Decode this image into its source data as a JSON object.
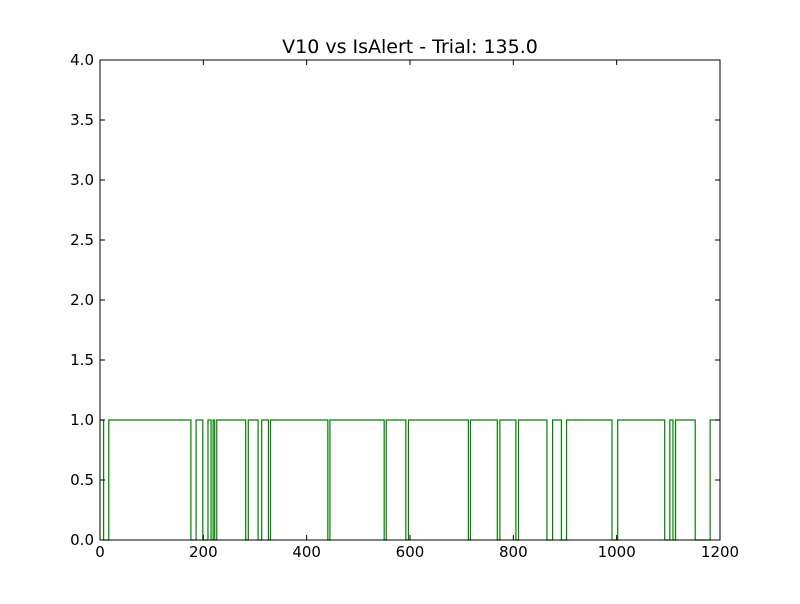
{
  "chart_data": {
    "type": "line",
    "title": "V10 vs IsAlert - Trial: 135.0",
    "xlabel": "",
    "ylabel": "",
    "xlim": [
      0,
      1200
    ],
    "ylim": [
      0,
      4
    ],
    "x_ticks": [
      0,
      200,
      400,
      600,
      800,
      1000,
      1200
    ],
    "x_tick_labels": [
      "0",
      "200",
      "400",
      "600",
      "800",
      "1000",
      "1200"
    ],
    "y_ticks": [
      0,
      0.5,
      1,
      1.5,
      2,
      2.5,
      3,
      3.5,
      4
    ],
    "y_tick_labels": [
      "0.0",
      "0.5",
      "1.0",
      "1.5",
      "2.0",
      "2.5",
      "3.0",
      "3.5",
      "4.0"
    ],
    "grid": false,
    "legend": "none",
    "series": [
      {
        "color": "#008000",
        "step": true,
        "x": [
          0,
          7,
          17,
          176,
          186,
          199,
          209,
          215,
          219,
          222,
          226,
          282,
          287,
          306,
          313,
          326,
          330,
          441,
          445,
          550,
          554,
          592,
          597,
          713,
          717,
          769,
          774,
          805,
          810,
          865,
          876,
          893,
          903,
          991,
          1002,
          1093,
          1103,
          1109,
          1114,
          1152,
          1181,
          1190,
          1200
        ],
        "y": [
          1,
          0,
          1,
          0,
          1,
          0,
          1,
          0,
          1,
          0,
          1,
          0,
          1,
          0,
          1,
          0,
          1,
          0,
          1,
          0,
          1,
          0,
          1,
          0,
          1,
          0,
          1,
          0,
          1,
          0,
          1,
          0,
          1,
          0,
          1,
          0,
          1,
          0,
          1,
          0,
          1,
          1,
          1
        ]
      }
    ]
  }
}
